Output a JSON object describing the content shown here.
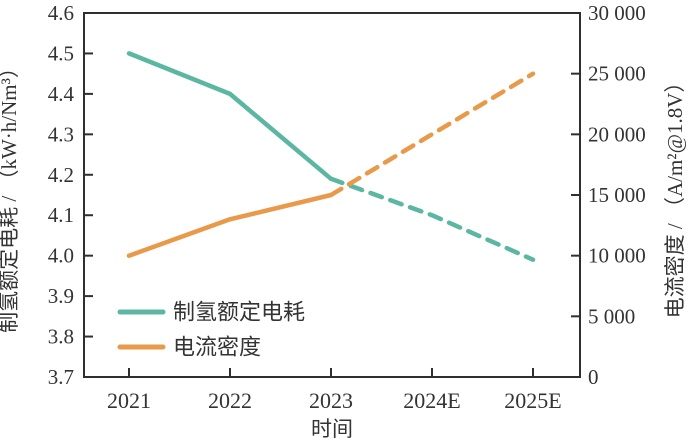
{
  "colors": {
    "axis": "#2f2f2f",
    "text": "#333333",
    "background": "#ffffff",
    "series_power": "#5cb7a2",
    "series_current": "#e8994a"
  },
  "chart_data": {
    "type": "line",
    "title": "",
    "xlabel": "时间",
    "x_categories": [
      "2021",
      "2022",
      "2023",
      "2024E",
      "2025E"
    ],
    "grid": false,
    "legend_position": "lower-left",
    "left_axis": {
      "label": "制氢额定电耗 / （kW·h/Nm³）",
      "min": 3.7,
      "max": 4.6,
      "tick_labels": [
        "4.6",
        "4.5",
        "4.4",
        "4.3",
        "4.2",
        "4.1",
        "4.0",
        "3.9",
        "3.8",
        "3.7"
      ]
    },
    "right_axis": {
      "label": "电流密度 / （A/m²@1.8V）",
      "min": 0,
      "max": 30000,
      "tick_labels": [
        "30 000",
        "25 000",
        "20 000",
        "15 000",
        "10 000",
        "5 000",
        "0"
      ]
    },
    "series": [
      {
        "name": "制氢额定电耗",
        "axis": "left",
        "color": "#5cb7a2",
        "values": [
          4.5,
          4.4,
          4.19,
          4.1,
          3.99
        ],
        "solid_until_index": 2,
        "style_after": "dashed"
      },
      {
        "name": "电流密度",
        "axis": "right",
        "color": "#e8994a",
        "values": [
          10000,
          13000,
          15000,
          20000,
          25000
        ],
        "solid_until_index": 2,
        "style_after": "dashed"
      }
    ]
  }
}
